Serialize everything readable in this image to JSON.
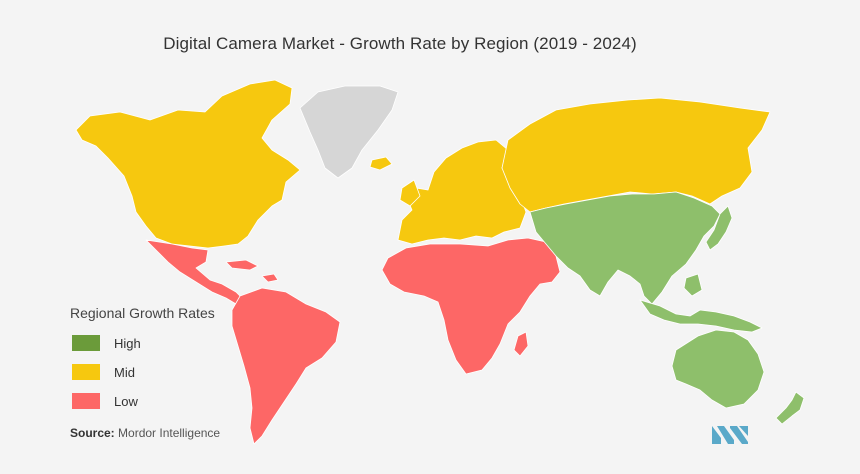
{
  "title": "Digital Camera Market - Growth Rate by Region (2019 - 2024)",
  "colors": {
    "high": "#8ebf6b",
    "mid": "#f6c80f",
    "low": "#fd6766",
    "nodata": "#d6d6d6",
    "legend_high": "#6b9b3a",
    "legend_mid": "#f6c80f",
    "legend_low": "#fd6766"
  },
  "legend": {
    "title": "Regional Growth Rates",
    "items": [
      {
        "key": "high",
        "label": "High"
      },
      {
        "key": "mid",
        "label": "Mid"
      },
      {
        "key": "low",
        "label": "Low"
      }
    ]
  },
  "regions": [
    {
      "name": "North America",
      "rate": "mid"
    },
    {
      "name": "Europe",
      "rate": "mid"
    },
    {
      "name": "Russia",
      "rate": "mid"
    },
    {
      "name": "Asia-Pacific",
      "rate": "high"
    },
    {
      "name": "Australia and New Zealand",
      "rate": "high"
    },
    {
      "name": "Latin America",
      "rate": "low"
    },
    {
      "name": "Middle East and Africa",
      "rate": "low"
    },
    {
      "name": "Greenland",
      "rate": "nodata"
    }
  ],
  "source": {
    "label": "Source:",
    "text": "Mordor Intelligence"
  },
  "logo": {
    "icon": "mordor-intelligence-logo-icon",
    "color": "#5aa9c9"
  }
}
